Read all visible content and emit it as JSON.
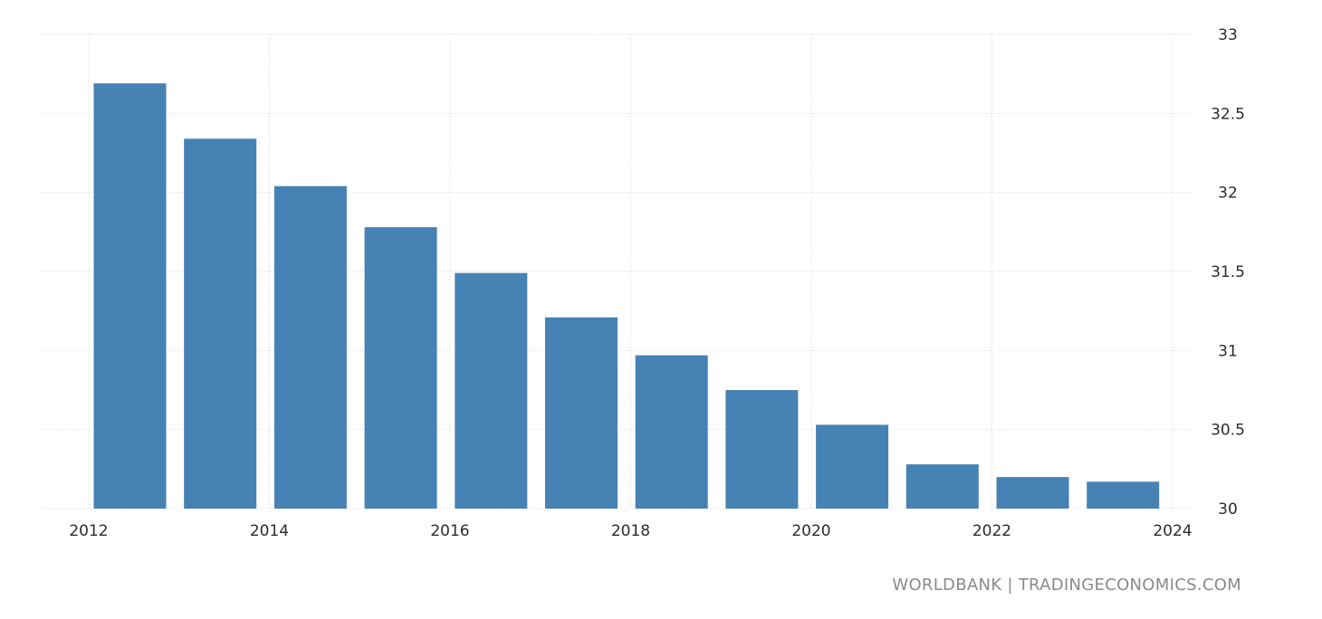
{
  "chart_data": {
    "type": "bar",
    "title": "",
    "xlabel": "",
    "ylabel": "",
    "categories": [
      "2012",
      "2013",
      "2014",
      "2015",
      "2016",
      "2017",
      "2018",
      "2019",
      "2020",
      "2021",
      "2022",
      "2023"
    ],
    "series": [
      {
        "values": [
          32.69,
          32.34,
          32.04,
          31.78,
          31.49,
          31.21,
          30.97,
          30.75,
          30.53,
          30.28,
          30.2,
          30.17
        ]
      }
    ],
    "ylim": [
      30,
      33
    ],
    "y_ticks": [
      "33",
      "32.5",
      "32",
      "31.5",
      "31",
      "30.5",
      "30"
    ],
    "x_ticks": [
      "2012",
      "2014",
      "2016",
      "2018",
      "2020",
      "2022",
      "2024"
    ],
    "y_axis_side": "right",
    "grid": true,
    "bar_color": "#4682b4"
  },
  "footer": {
    "source": "WORLDBANK | TRADINGECONOMICS.COM"
  }
}
